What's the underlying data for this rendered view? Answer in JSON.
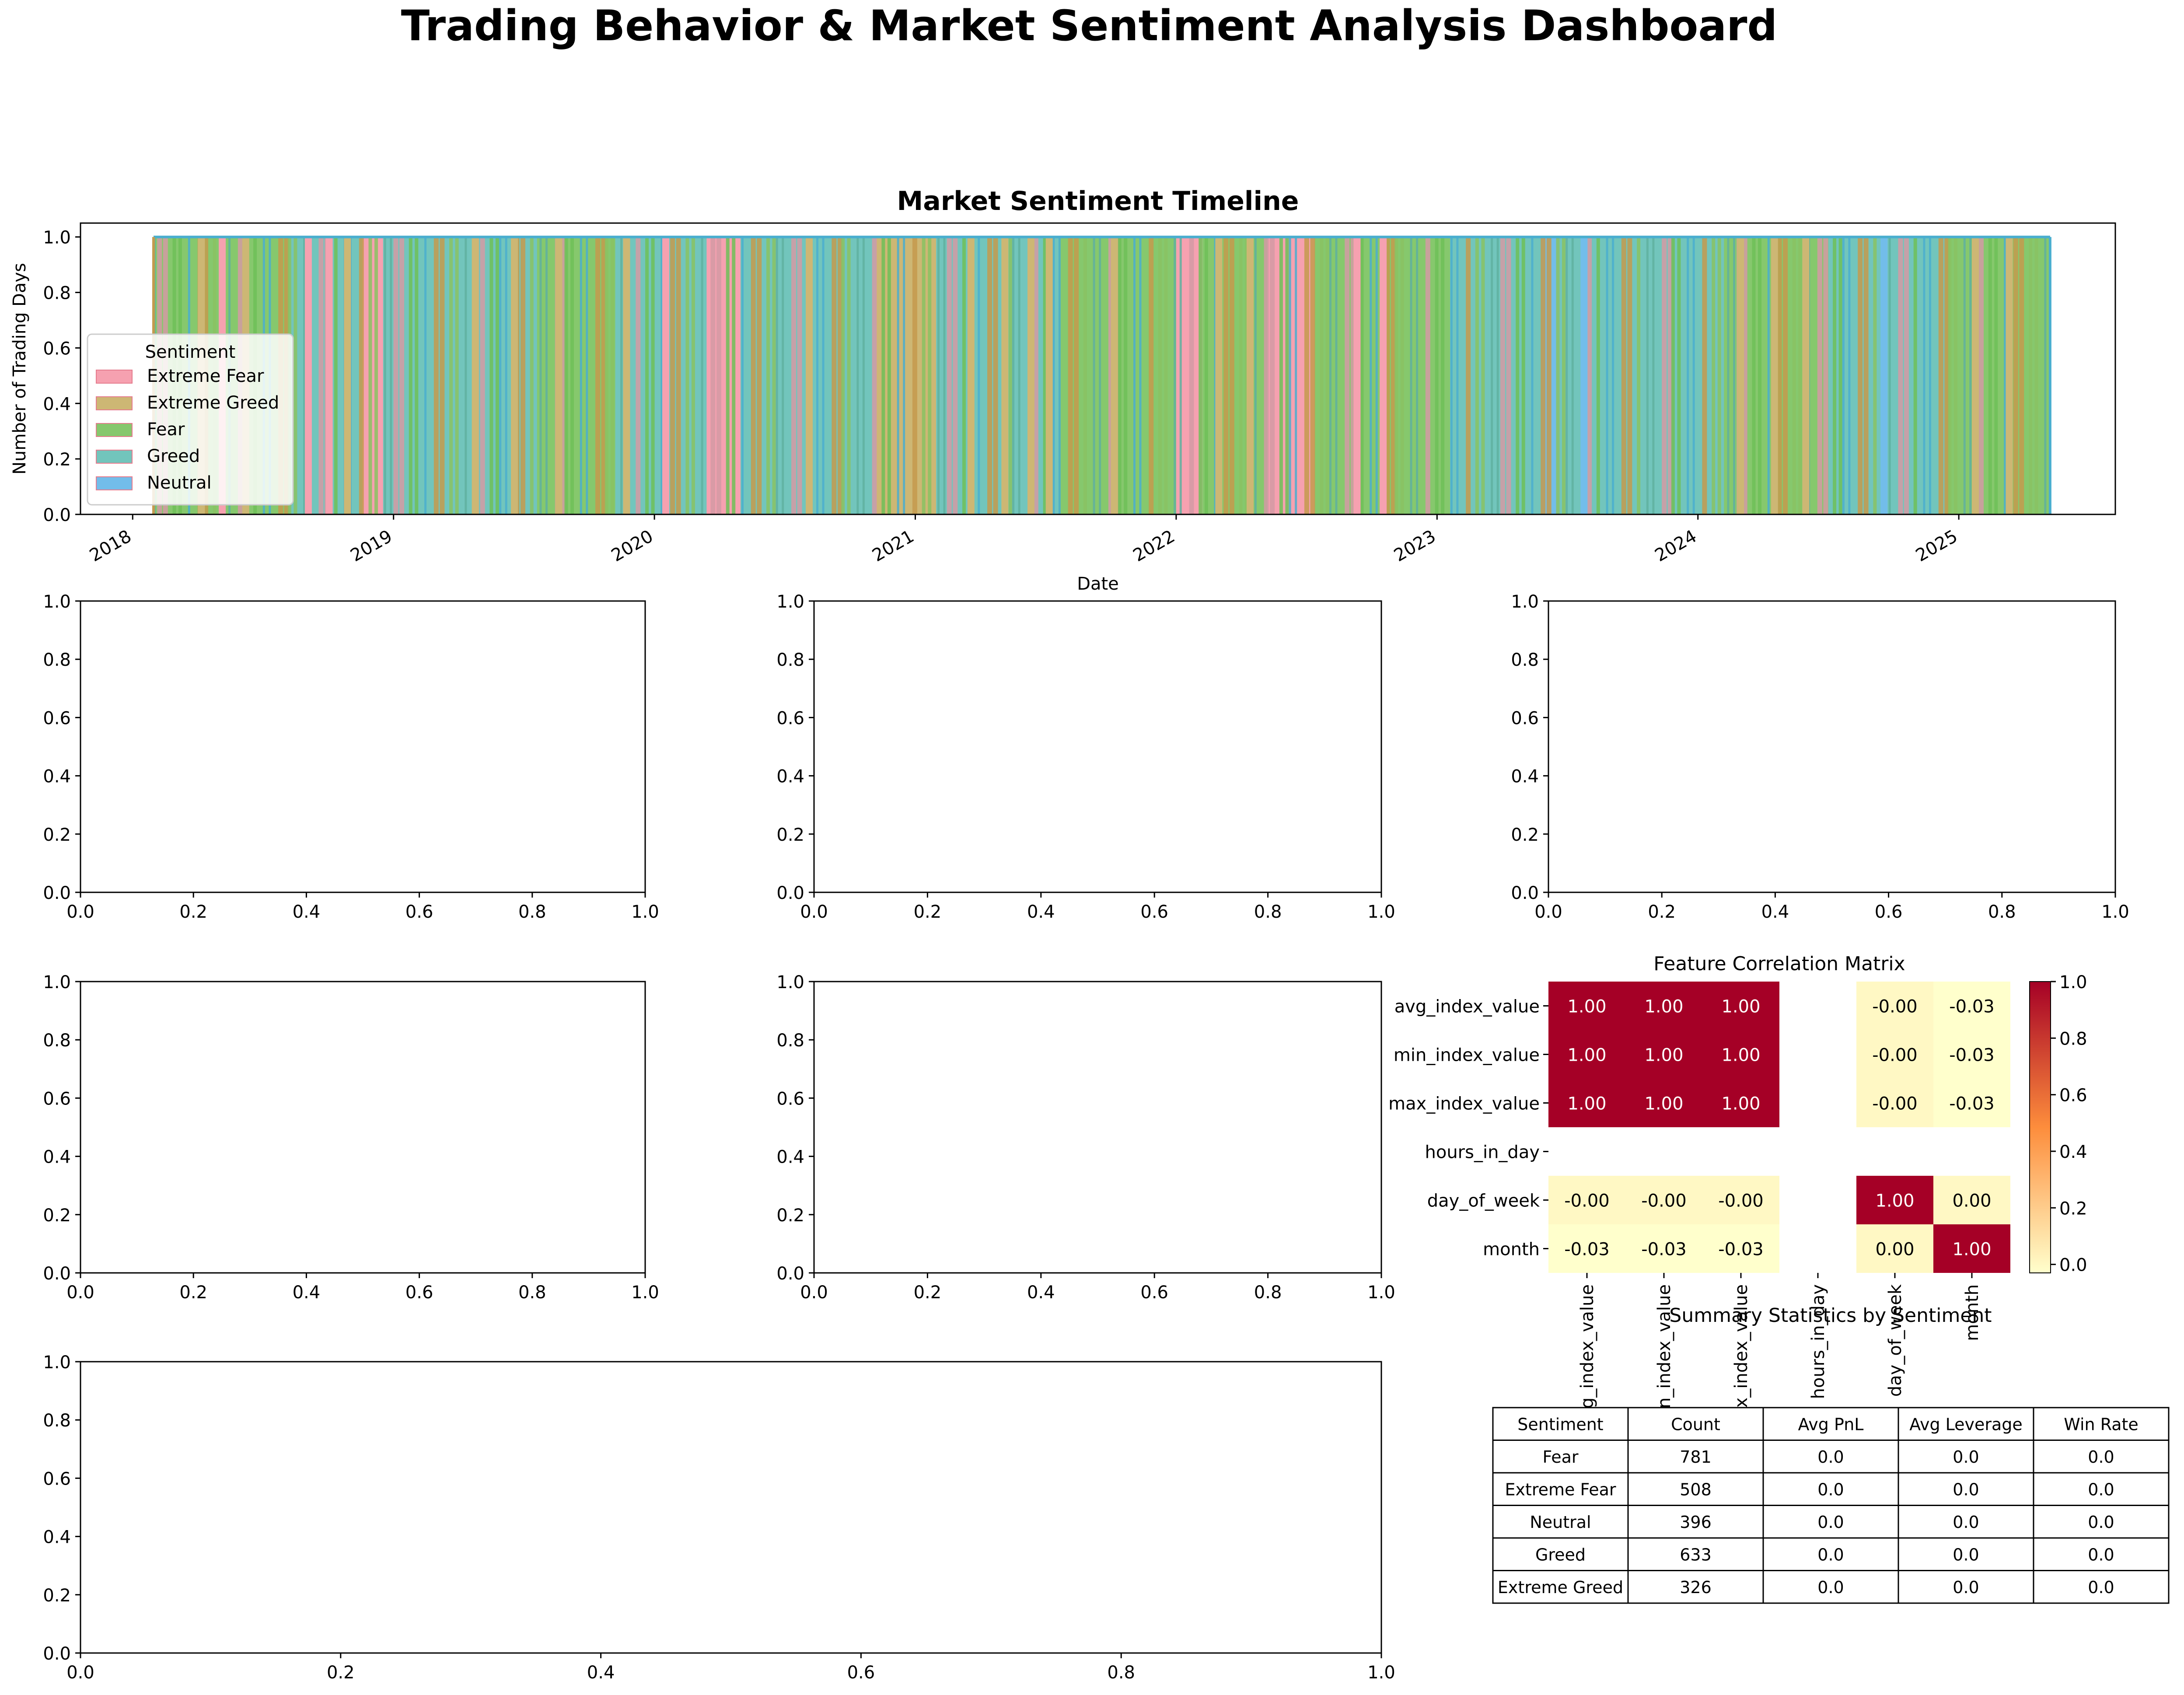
{
  "title": "Trading Behavior & Market Sentiment Analysis Dashboard",
  "chart_data": [
    {
      "type": "area",
      "title": "Market Sentiment Timeline",
      "xlabel": "Date",
      "ylabel": "Number of Trading Days",
      "x_tick_labels": [
        "2018",
        "2019",
        "2020",
        "2021",
        "2022",
        "2023",
        "2024",
        "2025"
      ],
      "y_ticks": [
        0.0,
        0.2,
        0.4,
        0.6,
        0.8,
        1.0
      ],
      "y_tick_labels": [
        "0.0",
        "0.2",
        "0.4",
        "0.6",
        "0.8",
        "1.0"
      ],
      "ylim": [
        0,
        1.05
      ],
      "xlim": [
        2017.8,
        2025.6
      ],
      "data_range": [
        2018.08,
        2025.35
      ],
      "legend_title": "Sentiment",
      "legend_location": "center-left",
      "series": [
        {
          "name": "Extreme Fear",
          "color": "#f6a1b0"
        },
        {
          "name": "Extreme Greed",
          "color": "#cdb774"
        },
        {
          "name": "Fear",
          "color": "#86c86d"
        },
        {
          "name": "Greed",
          "color": "#72c5bc"
        },
        {
          "name": "Neutral",
          "color": "#72bdea"
        }
      ],
      "segments": [
        {
          "start": 2018.08,
          "end": 2018.6,
          "sentiment": "Fear"
        },
        {
          "start": 2018.6,
          "end": 2018.88,
          "sentiment": "Greed"
        },
        {
          "start": 2018.88,
          "end": 2018.96,
          "sentiment": "Extreme Fear"
        },
        {
          "start": 2018.96,
          "end": 2019.55,
          "sentiment": "Greed"
        },
        {
          "start": 2019.55,
          "end": 2019.85,
          "sentiment": "Fear"
        },
        {
          "start": 2019.85,
          "end": 2020.2,
          "sentiment": "Greed"
        },
        {
          "start": 2020.2,
          "end": 2020.33,
          "sentiment": "Extreme Fear"
        },
        {
          "start": 2020.33,
          "end": 2020.85,
          "sentiment": "Greed"
        },
        {
          "start": 2020.85,
          "end": 2021.08,
          "sentiment": "Extreme Greed"
        },
        {
          "start": 2021.08,
          "end": 2021.55,
          "sentiment": "Greed"
        },
        {
          "start": 2021.55,
          "end": 2022.0,
          "sentiment": "Fear"
        },
        {
          "start": 2022.0,
          "end": 2022.1,
          "sentiment": "Extreme Fear"
        },
        {
          "start": 2022.1,
          "end": 2022.35,
          "sentiment": "Fear"
        },
        {
          "start": 2022.35,
          "end": 2022.53,
          "sentiment": "Extreme Fear"
        },
        {
          "start": 2022.53,
          "end": 2022.9,
          "sentiment": "Fear"
        },
        {
          "start": 2022.9,
          "end": 2023.05,
          "sentiment": "Fear"
        },
        {
          "start": 2023.05,
          "end": 2023.4,
          "sentiment": "Greed"
        },
        {
          "start": 2023.4,
          "end": 2023.47,
          "sentiment": "Neutral"
        },
        {
          "start": 2023.47,
          "end": 2023.72,
          "sentiment": "Greed"
        },
        {
          "start": 2023.72,
          "end": 2024.1,
          "sentiment": "Greed"
        },
        {
          "start": 2024.1,
          "end": 2024.5,
          "sentiment": "Fear"
        },
        {
          "start": 2024.5,
          "end": 2024.95,
          "sentiment": "Greed"
        },
        {
          "start": 2024.95,
          "end": 2025.35,
          "sentiment": "Fear"
        }
      ],
      "stripes": [
        {
          "x": 2018.25,
          "sentiment": "Extreme Greed"
        },
        {
          "x": 2018.33,
          "sentiment": "Extreme Fear"
        },
        {
          "x": 2018.42,
          "sentiment": "Extreme Greed"
        },
        {
          "x": 2018.66,
          "sentiment": "Extreme Fear"
        },
        {
          "x": 2018.74,
          "sentiment": "Extreme Fear"
        },
        {
          "x": 2018.81,
          "sentiment": "Extreme Greed"
        },
        {
          "x": 2019.3,
          "sentiment": "Extreme Greed"
        },
        {
          "x": 2019.45,
          "sentiment": "Extreme Greed"
        },
        {
          "x": 2019.62,
          "sentiment": "Extreme Greed"
        },
        {
          "x": 2019.88,
          "sentiment": "Extreme Greed"
        },
        {
          "x": 2020.03,
          "sentiment": "Extreme Fear"
        },
        {
          "x": 2020.58,
          "sentiment": "Extreme Greed"
        },
        {
          "x": 2021.2,
          "sentiment": "Extreme Greed"
        },
        {
          "x": 2021.33,
          "sentiment": "Extreme Greed"
        },
        {
          "x": 2021.43,
          "sentiment": "Extreme Greed"
        },
        {
          "x": 2021.5,
          "sentiment": "Extreme Greed"
        },
        {
          "x": 2021.75,
          "sentiment": "Extreme Greed"
        },
        {
          "x": 2022.15,
          "sentiment": "Extreme Greed"
        },
        {
          "x": 2022.27,
          "sentiment": "Extreme Greed"
        },
        {
          "x": 2022.68,
          "sentiment": "Extreme Fear"
        },
        {
          "x": 2022.78,
          "sentiment": "Extreme Fear"
        },
        {
          "x": 2023.55,
          "sentiment": "Neutral"
        },
        {
          "x": 2024.15,
          "sentiment": "Extreme Greed"
        },
        {
          "x": 2024.28,
          "sentiment": "Extreme Greed"
        },
        {
          "x": 2024.4,
          "sentiment": "Extreme Greed"
        },
        {
          "x": 2024.7,
          "sentiment": "Neutral"
        },
        {
          "x": 2025.05,
          "sentiment": "Extreme Greed"
        },
        {
          "x": 2025.18,
          "sentiment": "Extreme Greed"
        }
      ]
    },
    {
      "type": "empty",
      "x_ticks": [
        "0.0",
        "0.2",
        "0.4",
        "0.6",
        "0.8",
        "1.0"
      ],
      "y_ticks": [
        "0.0",
        "0.2",
        "0.4",
        "0.6",
        "0.8",
        "1.0"
      ]
    },
    {
      "type": "empty",
      "x_ticks": [
        "0.0",
        "0.2",
        "0.4",
        "0.6",
        "0.8",
        "1.0"
      ],
      "y_ticks": [
        "0.0",
        "0.2",
        "0.4",
        "0.6",
        "0.8",
        "1.0"
      ]
    },
    {
      "type": "empty",
      "x_ticks": [
        "0.0",
        "0.2",
        "0.4",
        "0.6",
        "0.8",
        "1.0"
      ],
      "y_ticks": [
        "0.0",
        "0.2",
        "0.4",
        "0.6",
        "0.8",
        "1.0"
      ]
    },
    {
      "type": "empty",
      "x_ticks": [
        "0.0",
        "0.2",
        "0.4",
        "0.6",
        "0.8",
        "1.0"
      ],
      "y_ticks": [
        "0.0",
        "0.2",
        "0.4",
        "0.6",
        "0.8",
        "1.0"
      ]
    },
    {
      "type": "empty",
      "x_ticks": [
        "0.0",
        "0.2",
        "0.4",
        "0.6",
        "0.8",
        "1.0"
      ],
      "y_ticks": [
        "0.0",
        "0.2",
        "0.4",
        "0.6",
        "0.8",
        "1.0"
      ]
    },
    {
      "type": "empty",
      "x_ticks": [
        "0.0",
        "0.2",
        "0.4",
        "0.6",
        "0.8",
        "1.0"
      ],
      "y_ticks": [
        "0.0",
        "0.2",
        "0.4",
        "0.6",
        "0.8",
        "1.0"
      ]
    },
    {
      "type": "heatmap",
      "title": "Feature Correlation Matrix",
      "row_labels": [
        "avg_index_value",
        "min_index_value",
        "max_index_value",
        "hours_in_day",
        "day_of_week",
        "month"
      ],
      "col_labels": [
        "avg_index_value",
        "min_index_value",
        "max_index_value",
        "hours_in_day",
        "day_of_week",
        "month"
      ],
      "values": [
        [
          1.0,
          1.0,
          1.0,
          null,
          -0.0,
          -0.03
        ],
        [
          1.0,
          1.0,
          1.0,
          null,
          -0.0,
          -0.03
        ],
        [
          1.0,
          1.0,
          1.0,
          null,
          -0.0,
          -0.03
        ],
        [
          null,
          null,
          null,
          null,
          null,
          null
        ],
        [
          -0.0,
          -0.0,
          -0.0,
          null,
          1.0,
          0.0
        ],
        [
          -0.03,
          -0.03,
          -0.03,
          null,
          0.0,
          1.0
        ]
      ],
      "annotations": [
        [
          "1.00",
          "1.00",
          "1.00",
          "",
          "-0.00",
          "-0.03"
        ],
        [
          "1.00",
          "1.00",
          "1.00",
          "",
          "-0.00",
          "-0.03"
        ],
        [
          "1.00",
          "1.00",
          "1.00",
          "",
          "-0.00",
          "-0.03"
        ],
        [
          "",
          "",
          "",
          "",
          "",
          ""
        ],
        [
          "-0.00",
          "-0.00",
          "-0.00",
          "",
          "1.00",
          "0.00"
        ],
        [
          "-0.03",
          "-0.03",
          "-0.03",
          "",
          "0.00",
          "1.00"
        ]
      ],
      "colorbar_range": [
        -0.03,
        1.0
      ],
      "colorbar_ticks": [
        0.0,
        0.2,
        0.4,
        0.6,
        0.8,
        1.0
      ],
      "colorbar_tick_labels": [
        "0.0",
        "0.2",
        "0.4",
        "0.6",
        "0.8",
        "1.0"
      ],
      "cmap_low": "#ffffcc",
      "cmap_mid": "#fd8d3c",
      "cmap_high": "#a50026"
    },
    {
      "type": "table",
      "title": "Summary Statistics by Sentiment",
      "columns": [
        "Sentiment",
        "Count",
        "Avg PnL",
        "Avg Leverage",
        "Win Rate"
      ],
      "rows": [
        [
          "Fear",
          "781",
          "0.0",
          "0.0",
          "0.0"
        ],
        [
          "Extreme Fear",
          "508",
          "0.0",
          "0.0",
          "0.0"
        ],
        [
          "Neutral",
          "396",
          "0.0",
          "0.0",
          "0.0"
        ],
        [
          "Greed",
          "633",
          "0.0",
          "0.0",
          "0.0"
        ],
        [
          "Extreme Greed",
          "326",
          "0.0",
          "0.0",
          "0.0"
        ]
      ]
    }
  ]
}
